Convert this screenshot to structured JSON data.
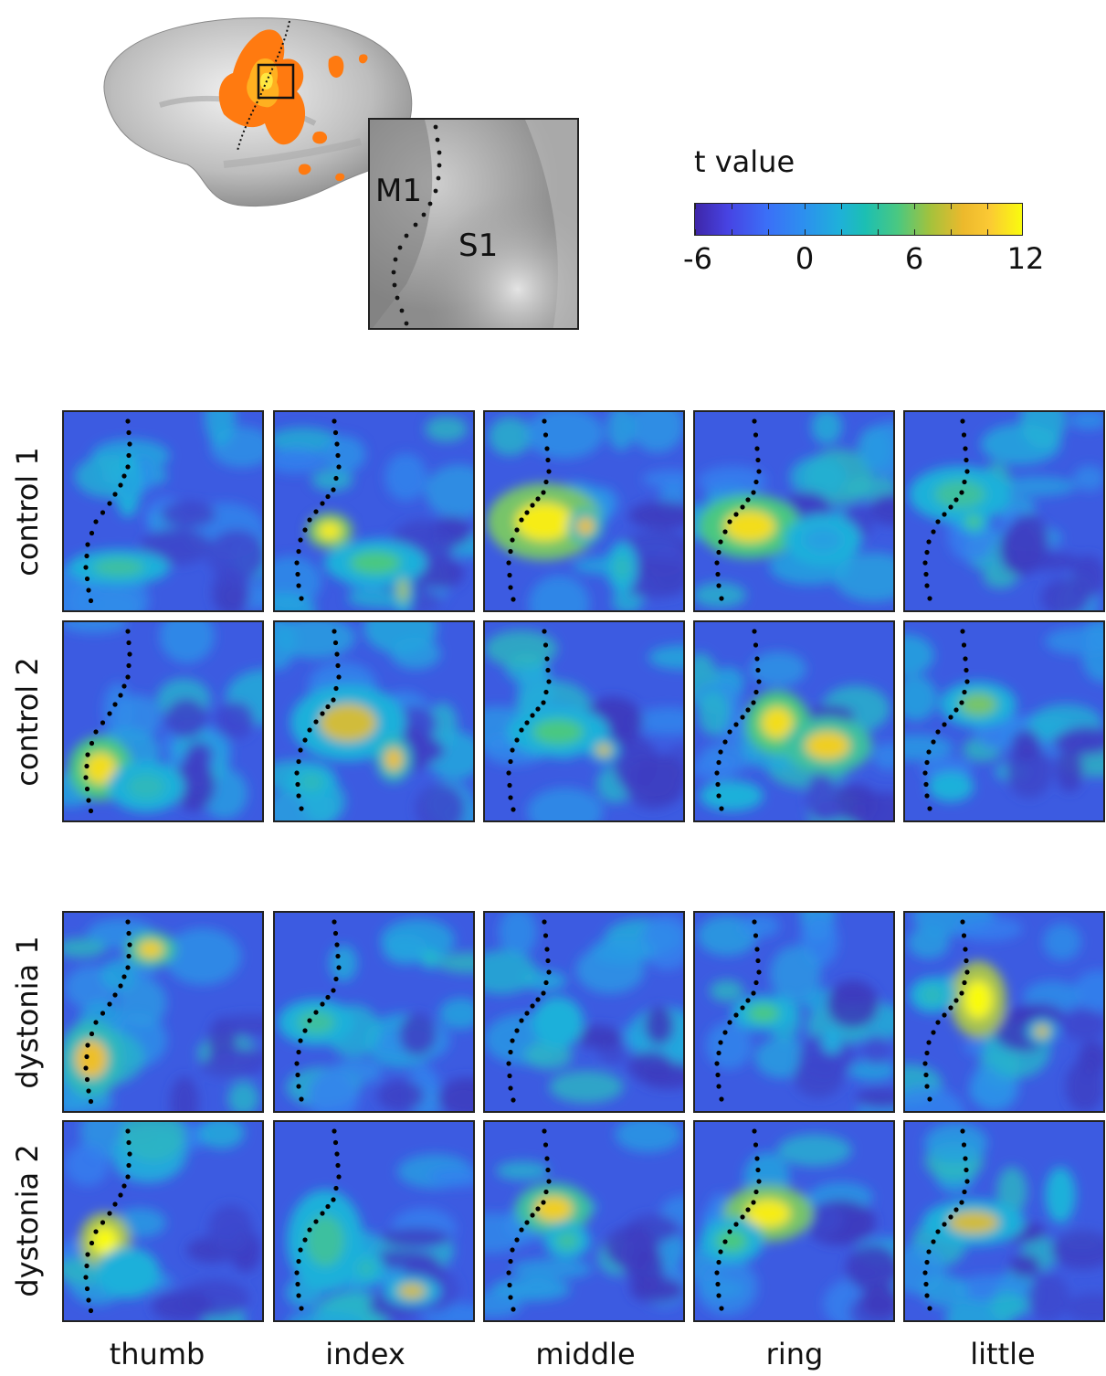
{
  "zoom_labels": {
    "m1": "M1",
    "s1": "S1"
  },
  "colorbar": {
    "title": "t value",
    "min": -6,
    "max": 12,
    "ticks": [
      "-6",
      "0",
      "6",
      "12"
    ],
    "colormap": "parula"
  },
  "rows": [
    "control 1",
    "control 2",
    "dystonia 1",
    "dystonia 2"
  ],
  "columns": [
    "thumb",
    "index",
    "middle",
    "ring",
    "little"
  ],
  "colors": {
    "background_low": "#3e26a8",
    "mid": "#1fb0da",
    "high": "#f9fb0e",
    "activation_overlay": "#ff7a10"
  }
}
